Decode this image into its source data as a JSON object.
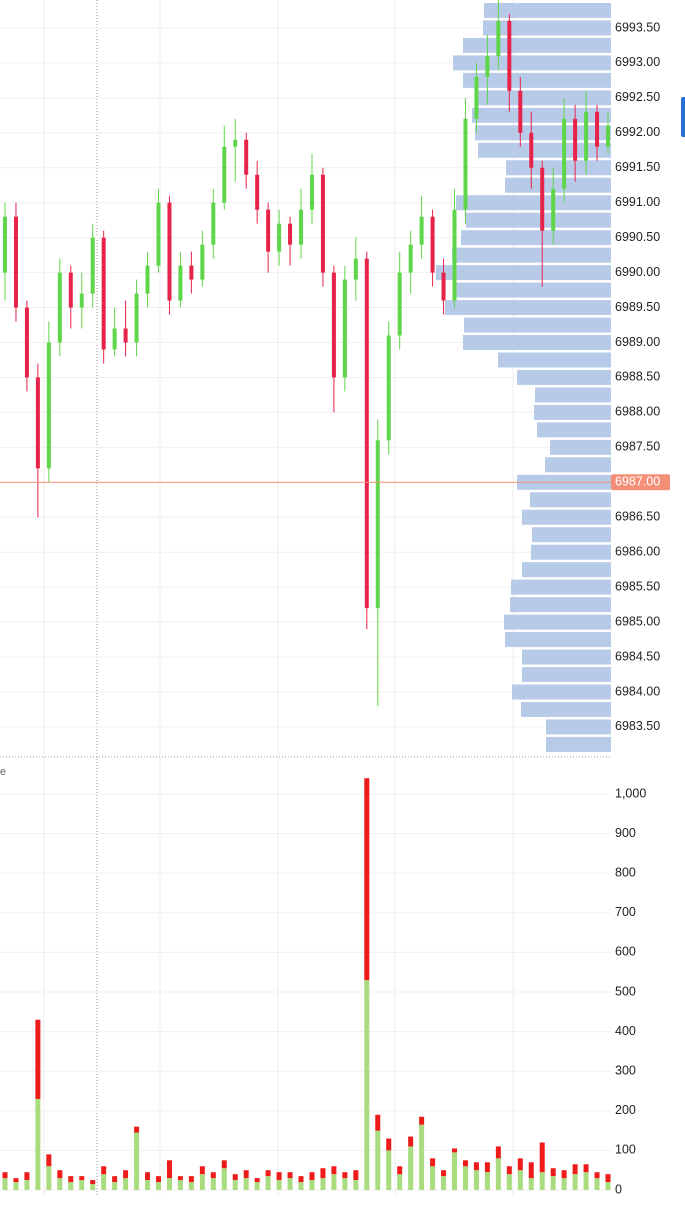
{
  "chart_data": {
    "type": "candlestick",
    "up_color": "#5fd64a",
    "down_color": "#e8234a",
    "ylim": [
      6983.07,
      6993.9
    ],
    "yticks": [
      {
        "value": 6993.5,
        "label": "6993.50"
      },
      {
        "value": 6993,
        "label": "6993.00"
      },
      {
        "value": 6992.5,
        "label": "6992.50"
      },
      {
        "value": 6992,
        "label": "6992.00"
      },
      {
        "value": 6991.5,
        "label": "6991.50"
      },
      {
        "value": 6991,
        "label": "6991.00"
      },
      {
        "value": 6990.5,
        "label": "6990.50"
      },
      {
        "value": 6990,
        "label": "6990.00"
      },
      {
        "value": 6989.5,
        "label": "6989.50"
      },
      {
        "value": 6989,
        "label": "6989.00"
      },
      {
        "value": 6988.5,
        "label": "6988.50"
      },
      {
        "value": 6988,
        "label": "6988.00"
      },
      {
        "value": 6987.5,
        "label": "6987.50"
      },
      {
        "value": 6986.5,
        "label": "6986.50"
      },
      {
        "value": 6986,
        "label": "6986.00"
      },
      {
        "value": 6985.5,
        "label": "6985.50"
      },
      {
        "value": 6985,
        "label": "6985.00"
      },
      {
        "value": 6984.5,
        "label": "6984.50"
      },
      {
        "value": 6984,
        "label": "6984.00"
      },
      {
        "value": 6983.5,
        "label": "6983.50"
      }
    ],
    "last_price": {
      "value": 6987,
      "label": "6987.00",
      "color": "#f28f76"
    },
    "open": [
      6990.0,
      6990.8,
      6989.5,
      6988.5,
      6987.2,
      6989.0,
      6990.0,
      6989.5,
      6989.7,
      6990.5,
      6988.9,
      6989.2,
      6989.0,
      6989.7,
      6990.1,
      6991.0,
      6989.6,
      6990.1,
      6989.9,
      6990.4,
      6991.0,
      6991.8,
      6991.9,
      6991.4,
      6990.9,
      6990.3,
      6990.7,
      6990.4,
      6990.9,
      6991.4,
      6990.0,
      6988.5,
      6989.9,
      6990.2,
      6985.2,
      6987.6,
      6989.1,
      6990.0,
      6990.4,
      6990.8,
      6990.0,
      6989.6,
      6990.9,
      6992.2,
      6992.8,
      6993.1,
      6993.6,
      6992.6,
      6992.0,
      6991.5,
      6990.6,
      6991.2,
      6992.2,
      6991.6,
      6992.3,
      6991.8
    ],
    "high": [
      6991.0,
      6991.0,
      6989.6,
      6988.7,
      6989.3,
      6990.2,
      6990.1,
      6990.0,
      6990.7,
      6990.6,
      6989.5,
      6989.6,
      6989.9,
      6990.3,
      6991.2,
      6991.1,
      6990.3,
      6990.3,
      6990.6,
      6991.2,
      6992.1,
      6992.2,
      6992.0,
      6991.6,
      6991.0,
      6990.9,
      6990.8,
      6991.2,
      6991.7,
      6991.5,
      6990.1,
      6990.1,
      6990.5,
      6990.3,
      6987.9,
      6989.3,
      6990.3,
      6990.6,
      6991.1,
      6990.9,
      6990.2,
      6991.2,
      6992.5,
      6993.0,
      6993.4,
      6993.9,
      6993.7,
      6992.8,
      6992.3,
      6991.6,
      6991.5,
      6992.5,
      6992.4,
      6992.6,
      6992.4,
      6992.3
    ],
    "low": [
      6989.6,
      6989.3,
      6988.3,
      6986.5,
      6987.0,
      6988.8,
      6989.2,
      6989.2,
      6989.5,
      6988.7,
      6988.8,
      6988.8,
      6988.8,
      6989.5,
      6990.0,
      6989.4,
      6989.5,
      6989.7,
      6989.8,
      6990.2,
      6990.9,
      6991.3,
      6991.2,
      6990.7,
      6990.0,
      6990.1,
      6990.1,
      6990.2,
      6990.7,
      6989.8,
      6988.0,
      6988.3,
      6989.6,
      6984.9,
      6983.8,
      6987.4,
      6988.9,
      6989.7,
      6990.2,
      6989.8,
      6989.4,
      6989.5,
      6990.7,
      6992.0,
      6992.4,
      6992.9,
      6992.3,
      6991.8,
      6991.2,
      6989.8,
      6990.4,
      6991.0,
      6991.3,
      6991.4,
      6991.6,
      6991.7
    ],
    "close": [
      6990.8,
      6989.5,
      6988.5,
      6987.2,
      6989.0,
      6990.0,
      6989.5,
      6989.7,
      6990.5,
      6988.9,
      6989.2,
      6989.0,
      6989.7,
      6990.1,
      6991.0,
      6989.6,
      6990.1,
      6989.9,
      6990.4,
      6991.0,
      6991.8,
      6991.9,
      6991.4,
      6990.9,
      6990.3,
      6990.7,
      6990.4,
      6990.9,
      6991.4,
      6990.0,
      6988.5,
      6989.9,
      6990.2,
      6985.2,
      6987.6,
      6989.1,
      6990.0,
      6990.4,
      6990.8,
      6990.0,
      6989.6,
      6990.9,
      6992.2,
      6992.8,
      6993.1,
      6993.6,
      6992.6,
      6992.0,
      6991.5,
      6990.6,
      6991.2,
      6992.2,
      6991.6,
      6992.3,
      6991.8,
      6992.1
    ],
    "profile": {
      "color": "#b7cbe8",
      "prices": [
        6993.75,
        6993.5,
        6993.25,
        6993,
        6992.75,
        6992.5,
        6992.25,
        6992,
        6991.75,
        6991.5,
        6991.25,
        6991,
        6990.75,
        6990.5,
        6990.25,
        6990,
        6989.75,
        6989.5,
        6989.25,
        6989,
        6988.75,
        6988.5,
        6988.25,
        6988,
        6987.75,
        6987.5,
        6987.25,
        6987,
        6986.75,
        6986.5,
        6986.25,
        6986,
        6985.75,
        6985.5,
        6985.25,
        6985,
        6984.75,
        6984.5,
        6984.25,
        6984,
        6983.75,
        6983.5,
        6983.25
      ],
      "volumes": [
        127,
        128,
        148,
        158,
        148,
        135,
        139,
        136,
        133,
        105,
        106,
        155,
        145,
        150,
        159,
        175,
        155,
        166,
        147,
        148,
        113,
        94,
        76,
        77,
        74,
        61,
        66,
        94,
        81,
        89,
        79,
        80,
        89,
        100,
        101,
        107,
        106,
        89,
        89,
        99,
        90,
        65,
        65
      ]
    },
    "volume": {
      "label": "e",
      "ylim": [
        0,
        1086
      ],
      "yticks": [
        0,
        100,
        200,
        300,
        400,
        500,
        600,
        700,
        800,
        900,
        {
          "value": 1000,
          "label": "1,000"
        }
      ],
      "series": [
        {
          "name": "buy",
          "color": "#a9dc7e",
          "values": [
            30,
            20,
            25,
            230,
            60,
            30,
            20,
            25,
            15,
            40,
            20,
            30,
            145,
            25,
            20,
            30,
            25,
            20,
            40,
            30,
            55,
            25,
            30,
            20,
            35,
            25,
            30,
            20,
            25,
            30,
            40,
            30,
            25,
            530,
            150,
            100,
            40,
            110,
            165,
            60,
            35,
            95,
            60,
            50,
            45,
            80,
            40,
            50,
            30,
            45,
            35,
            30,
            40,
            45,
            30,
            20
          ]
        },
        {
          "name": "sell",
          "color": "#ee1b1b",
          "values": [
            15,
            10,
            20,
            200,
            30,
            20,
            15,
            10,
            10,
            20,
            15,
            20,
            15,
            20,
            15,
            45,
            10,
            15,
            20,
            15,
            20,
            15,
            20,
            10,
            15,
            20,
            15,
            15,
            20,
            25,
            20,
            15,
            25,
            510,
            40,
            30,
            20,
            25,
            20,
            20,
            15,
            10,
            15,
            20,
            25,
            30,
            20,
            30,
            40,
            75,
            20,
            20,
            25,
            20,
            15,
            20
          ]
        }
      ]
    }
  }
}
